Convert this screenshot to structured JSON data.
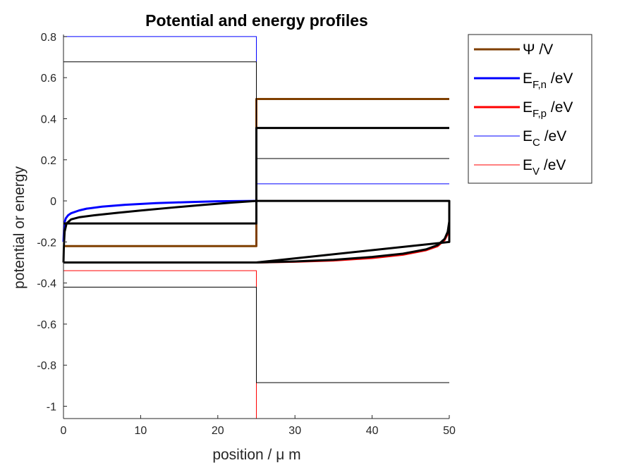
{
  "chart_data": {
    "type": "line",
    "title": "Potential and energy profiles",
    "xlabel": "position / μ m",
    "ylabel": "potential or energy",
    "xlim": [
      0,
      50
    ],
    "ylim": [
      -1.06,
      0.81
    ],
    "xticks": [
      0,
      10,
      20,
      30,
      40,
      50
    ],
    "yticks": [
      0.8,
      0.6,
      0.4,
      0.2,
      0,
      -0.2,
      -0.4,
      -0.6,
      -0.8,
      -1
    ],
    "ytick_labels": [
      "0.8",
      "0.6",
      "0.4",
      "0.2",
      "0",
      "-0.2",
      "-0.4",
      "-0.6",
      "-0.8",
      "-1"
    ],
    "xtick_labels": [
      "0",
      "10",
      "20",
      "30",
      "40",
      "50"
    ],
    "grid": false,
    "legend_position": "outside-top-right",
    "legend": [
      {
        "main": "Ψ /V",
        "sub": "",
        "suffix": "",
        "color": "#7F3F00",
        "width": 3
      },
      {
        "main": "E",
        "sub": "F,n",
        "suffix": " /eV",
        "color": "#0000FF",
        "width": 3
      },
      {
        "main": "E",
        "sub": "F,p",
        "suffix": " /eV",
        "color": "#FF0000",
        "width": 3
      },
      {
        "main": "E",
        "sub": "C",
        "suffix": " /eV",
        "color": "#0000FF",
        "width": 1
      },
      {
        "main": "E",
        "sub": "V",
        "suffix": " /eV",
        "color": "#FF0000",
        "width": 1
      }
    ],
    "series": [
      {
        "name": "Ψ /V",
        "color": "#7F3F00",
        "width": 3,
        "x": [
          0,
          25,
          25,
          50
        ],
        "y": [
          -0.22,
          -0.22,
          0.496,
          0.496
        ]
      },
      {
        "name": "E_F,n /eV",
        "color": "#0000FF",
        "width": 3,
        "x": [
          0,
          0.1,
          0.3,
          0.6,
          1,
          2,
          3,
          5,
          8,
          12,
          16,
          20,
          25
        ],
        "y": [
          -0.2,
          -0.11,
          -0.085,
          -0.07,
          -0.06,
          -0.047,
          -0.038,
          -0.028,
          -0.019,
          -0.011,
          -0.006,
          -0.002,
          0
        ]
      },
      {
        "name": "E_F,p /eV",
        "color": "#FF0000",
        "width": 3,
        "x": [
          25,
          30,
          35,
          40,
          44,
          47,
          48.5,
          49.4,
          49.8,
          50
        ],
        "y": [
          -0.3,
          -0.296,
          -0.29,
          -0.278,
          -0.262,
          -0.24,
          -0.22,
          -0.19,
          -0.16,
          -0.13
        ]
      },
      {
        "name": "E_C /eV",
        "color": "#0000FF",
        "width": 1,
        "x": [
          0,
          25,
          25,
          50
        ],
        "y": [
          0.8,
          0.8,
          0.083,
          0.083
        ]
      },
      {
        "name": "E_V /eV",
        "color": "#FF0000",
        "width": 1,
        "x": [
          0,
          25,
          25,
          50
        ],
        "y": [
          -0.34,
          -0.34,
          -1.06,
          -1.06
        ]
      },
      {
        "name": "",
        "color": "#000000",
        "width": 1,
        "x": [
          0,
          25,
          25,
          50
        ],
        "y": [
          0.677,
          0.677,
          0.206,
          0.206
        ]
      },
      {
        "name": "",
        "color": "#000000",
        "width": 1,
        "x": [
          0,
          25,
          25,
          50
        ],
        "y": [
          -0.42,
          -0.42,
          -0.885,
          -0.885
        ]
      },
      {
        "name": "",
        "color": "#000000",
        "width": 3,
        "x": [
          0,
          25,
          25,
          50
        ],
        "y": [
          -0.11,
          -0.11,
          0.355,
          0.355
        ]
      },
      {
        "name": "",
        "color": "#000000",
        "width": 3,
        "x": [
          0,
          0.05,
          0.15,
          0.4,
          1,
          2,
          4,
          7,
          10,
          14,
          18,
          22,
          25,
          30,
          35,
          40,
          44,
          47,
          48.5,
          49.4,
          49.8,
          50,
          50,
          25,
          0,
          0
        ],
        "y": [
          -0.3,
          -0.22,
          -0.15,
          -0.11,
          -0.09,
          -0.08,
          -0.07,
          -0.058,
          -0.047,
          -0.033,
          -0.02,
          -0.008,
          0,
          0,
          0,
          0,
          0,
          0,
          0,
          0,
          0,
          0,
          -0.2,
          -0.3,
          -0.3,
          -0.3
        ]
      },
      {
        "name": "",
        "color": "#000000",
        "width": 3,
        "x": [
          25,
          30,
          35,
          40,
          44,
          47,
          48.5,
          49.4,
          49.8,
          50
        ],
        "y": [
          -0.3,
          -0.295,
          -0.287,
          -0.273,
          -0.257,
          -0.236,
          -0.215,
          -0.185,
          -0.15,
          -0.1
        ]
      }
    ]
  }
}
